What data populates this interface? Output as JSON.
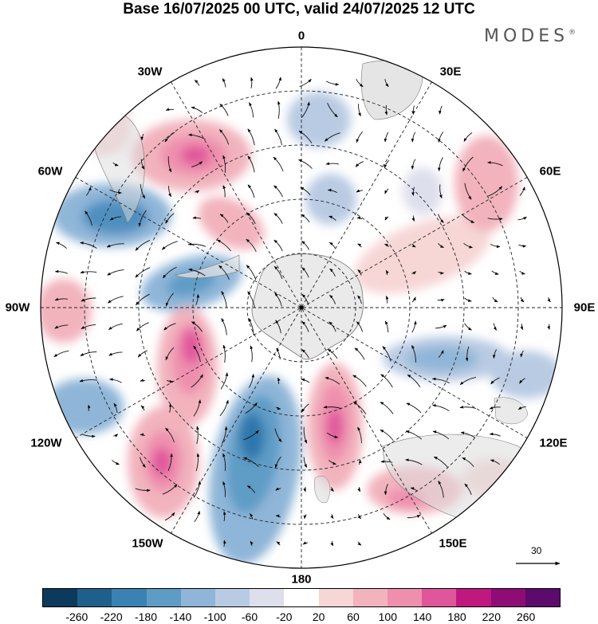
{
  "header": {
    "title": "Base 16/07/2025 00 UTC, valid 24/07/2025 12 UTC",
    "brand": "MODES",
    "brand_mark": "®"
  },
  "map": {
    "projection": "south-polar-stereographic",
    "longitude_labels": {
      "lon_0": "0",
      "lon_30e": "30E",
      "lon_60e": "60E",
      "lon_90e": "90E",
      "lon_120e": "120E",
      "lon_150e": "150E",
      "lon_180": "180",
      "lon_150w": "150W",
      "lon_120w": "120W",
      "lon_90w": "90W",
      "lon_60w": "60W",
      "lon_30w": "30W"
    },
    "vector_reference": "30"
  },
  "colorbar": {
    "colors": [
      "#0d3a5c",
      "#1f5f8b",
      "#3a82b4",
      "#5e9cc6",
      "#8fb6d8",
      "#b9cbe3",
      "#dddfed",
      "#ffffff",
      "#f7d6d6",
      "#f2b3bd",
      "#ee8fae",
      "#e0569b",
      "#c0187e",
      "#8e0c75",
      "#5c0a6b"
    ],
    "ticks": [
      "-260",
      "-220",
      "-180",
      "-140",
      "-100",
      "-60",
      "-20",
      "20",
      "60",
      "100",
      "140",
      "180",
      "220",
      "260"
    ]
  }
}
